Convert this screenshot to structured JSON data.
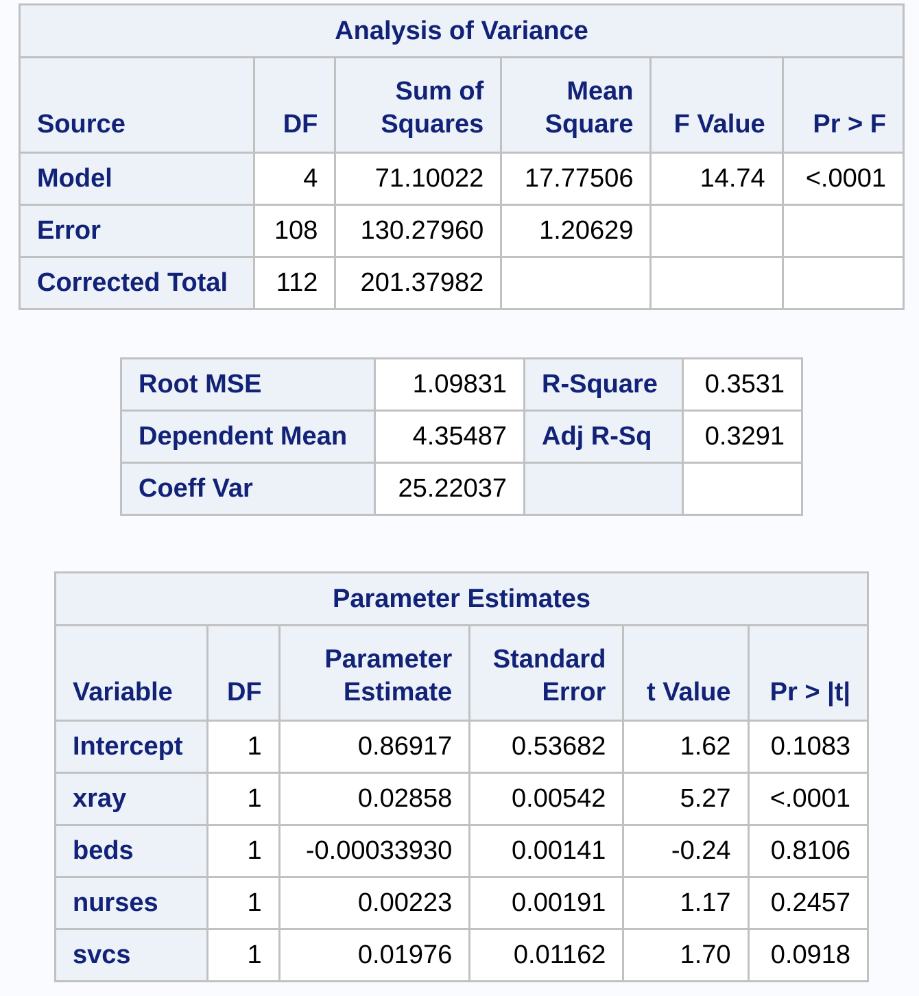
{
  "anova": {
    "title": "Analysis of Variance",
    "headers": {
      "source": "Source",
      "df": "DF",
      "ss_line1": "Sum of",
      "ss_line2": "Squares",
      "ms_line1": "Mean",
      "ms_line2": "Square",
      "f": "F Value",
      "p": "Pr > F"
    },
    "rows": [
      {
        "source": "Model",
        "df": "4",
        "ss": "71.10022",
        "ms": "17.77506",
        "f": "14.74",
        "p": "<.0001"
      },
      {
        "source": "Error",
        "df": "108",
        "ss": "130.27960",
        "ms": "1.20629",
        "f": "",
        "p": ""
      },
      {
        "source": "Corrected Total",
        "df": "112",
        "ss": "201.37982",
        "ms": "",
        "f": "",
        "p": ""
      }
    ]
  },
  "fit": {
    "rows": [
      {
        "label1": "Root MSE",
        "value1": "1.09831",
        "label2": "R-Square",
        "value2": "0.3531"
      },
      {
        "label1": "Dependent Mean",
        "value1": "4.35487",
        "label2": "Adj R-Sq",
        "value2": "0.3291"
      },
      {
        "label1": "Coeff Var",
        "value1": "25.22037",
        "label2": "",
        "value2": ""
      }
    ]
  },
  "params": {
    "title": "Parameter Estimates",
    "headers": {
      "variable": "Variable",
      "df": "DF",
      "est_line1": "Parameter",
      "est_line2": "Estimate",
      "se_line1": "Standard",
      "se_line2": "Error",
      "t": "t Value",
      "p": "Pr > |t|"
    },
    "rows": [
      {
        "variable": "Intercept",
        "df": "1",
        "est": "0.86917",
        "se": "0.53682",
        "t": "1.62",
        "p": "0.1083"
      },
      {
        "variable": "xray",
        "df": "1",
        "est": "0.02858",
        "se": "0.00542",
        "t": "5.27",
        "p": "<.0001"
      },
      {
        "variable": "beds",
        "df": "1",
        "est": "-0.00033930",
        "se": "0.00141",
        "t": "-0.24",
        "p": "0.8106"
      },
      {
        "variable": "nurses",
        "df": "1",
        "est": "0.00223",
        "se": "0.00191",
        "t": "1.17",
        "p": "0.2457"
      },
      {
        "variable": "svcs",
        "df": "1",
        "est": "0.01976",
        "se": "0.01162",
        "t": "1.70",
        "p": "0.0918"
      }
    ]
  }
}
